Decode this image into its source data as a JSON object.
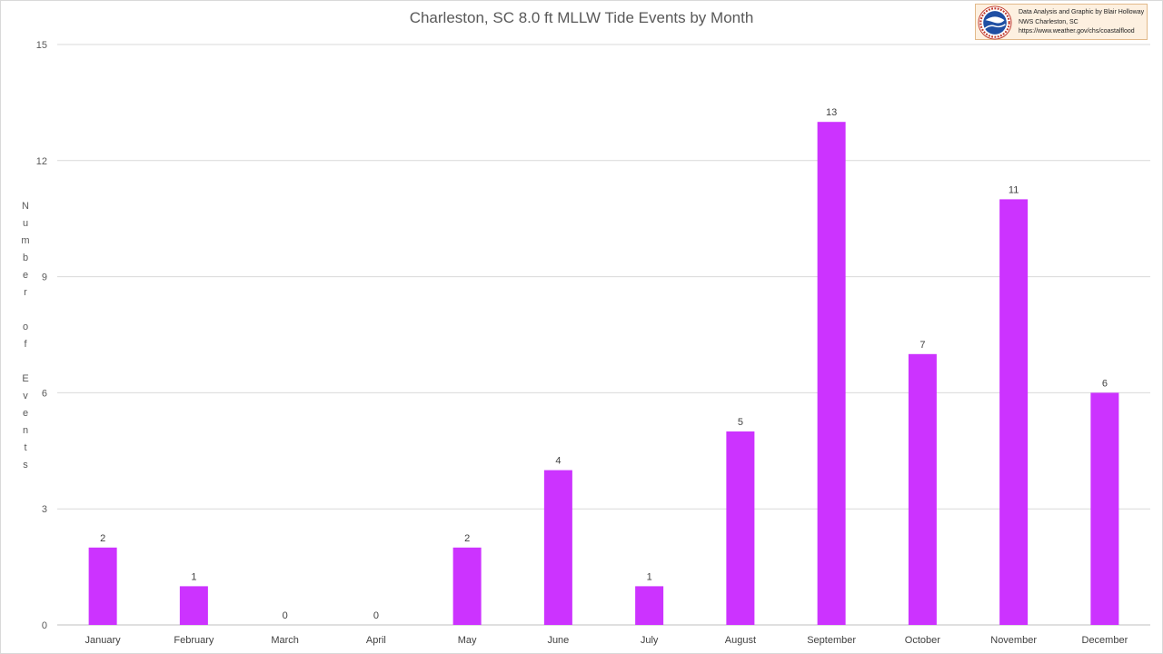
{
  "chart_data": {
    "type": "bar",
    "title": "Charleston, SC 8.0 ft MLLW Tide Events by Month",
    "xlabel": "",
    "ylabel": "Number of Events",
    "categories": [
      "January",
      "February",
      "March",
      "April",
      "May",
      "June",
      "July",
      "August",
      "September",
      "October",
      "November",
      "December"
    ],
    "values": [
      2,
      1,
      0,
      0,
      2,
      4,
      1,
      5,
      13,
      7,
      11,
      6
    ],
    "ylim": [
      0,
      15
    ],
    "yticks": [
      0,
      3,
      6,
      9,
      12,
      15
    ],
    "grid": true,
    "data_labels": true,
    "bar_color": "#cc33ff"
  },
  "credit": {
    "line1": "Data Analysis and Graphic by Blair Holloway",
    "line2": "NWS Charleston, SC",
    "line3": "https://www.weather.gov/chs/coastalflood",
    "logo_icon": "nws-logo-icon"
  }
}
